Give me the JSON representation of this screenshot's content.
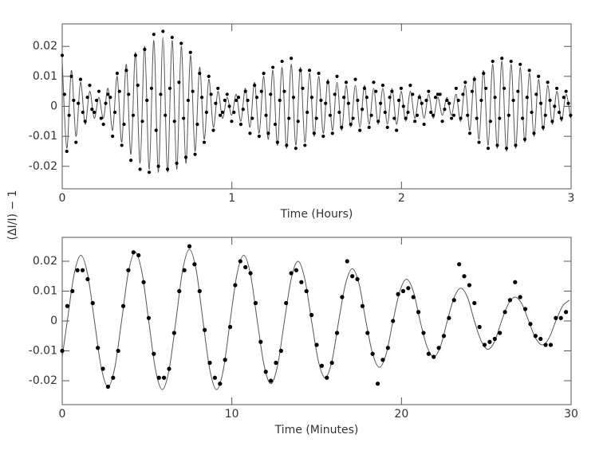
{
  "chart_data": [
    {
      "type": "line",
      "ylabel": "(ΔI/I) − 1",
      "xlabel": "Time (Hours)",
      "xlim": [
        0,
        3
      ],
      "xticks": [
        0,
        1,
        2,
        3
      ],
      "ylim": [
        -0.0275,
        0.0275
      ],
      "yticks": [
        -0.02,
        -0.01,
        0,
        0.01,
        0.02
      ],
      "x": [
        0,
        0.027,
        0.054,
        0.081,
        0.108,
        0.135,
        0.162,
        0.189,
        0.216,
        0.243,
        0.27,
        0.297,
        0.324,
        0.351,
        0.378,
        0.405,
        0.432,
        0.459,
        0.486,
        0.513,
        0.54,
        0.567,
        0.594,
        0.621,
        0.648,
        0.675,
        0.702,
        0.729,
        0.756,
        0.783,
        0.81,
        0.837,
        0.864,
        0.891,
        0.918,
        0.945,
        0.972,
        0.999,
        1.026,
        1.053,
        1.08,
        1.107,
        1.134,
        1.161,
        1.188,
        1.215,
        1.242,
        1.269,
        1.296,
        1.323,
        1.35,
        1.377,
        1.404,
        1.431,
        1.458,
        1.485,
        1.512,
        1.539,
        1.566,
        1.593,
        1.62,
        1.647,
        1.674,
        1.701,
        1.728,
        1.755,
        1.782,
        1.809,
        1.836,
        1.863,
        1.89,
        1.917,
        1.944,
        1.971,
        1.998,
        2.025,
        2.052,
        2.079,
        2.106,
        2.133,
        2.16,
        2.187,
        2.214,
        2.241,
        2.268,
        2.295,
        2.322,
        2.349,
        2.376,
        2.403,
        2.43,
        2.457,
        2.484,
        2.511,
        2.538,
        2.565,
        2.592,
        2.619,
        2.646,
        2.673,
        2.7,
        2.727,
        2.754,
        2.781,
        2.808,
        2.835,
        2.862,
        2.889,
        2.916,
        2.943,
        2.97,
        2.997
      ],
      "series": [
        {
          "type": "line",
          "color": "#555555",
          "values": [
            0.015,
            -0.014,
            0.012,
            -0.01,
            0.008,
            -0.006,
            0.005,
            -0.004,
            0.003,
            -0.004,
            0.006,
            -0.008,
            0.01,
            -0.012,
            0.014,
            -0.016,
            0.018,
            -0.019,
            0.02,
            -0.021,
            0.022,
            -0.022,
            0.023,
            -0.022,
            0.022,
            -0.021,
            0.02,
            -0.019,
            0.017,
            -0.015,
            0.013,
            -0.011,
            0.009,
            -0.007,
            0.005,
            -0.004,
            0.003,
            -0.003,
            0.004,
            -0.005,
            0.006,
            -0.007,
            0.008,
            -0.009,
            0.01,
            -0.011,
            0.012,
            -0.013,
            0.013,
            -0.014,
            0.014,
            -0.013,
            0.013,
            -0.012,
            0.011,
            -0.01,
            0.01,
            -0.009,
            0.009,
            -0.008,
            0.008,
            -0.008,
            0.007,
            -0.007,
            0.007,
            -0.007,
            0.007,
            -0.006,
            0.006,
            -0.006,
            0.006,
            -0.006,
            0.006,
            -0.006,
            0.005,
            -0.005,
            0.005,
            -0.004,
            0.004,
            -0.004,
            0.004,
            -0.004,
            0.003,
            -0.003,
            0.003,
            -0.003,
            0.004,
            -0.005,
            0.007,
            -0.008,
            0.01,
            -0.011,
            0.012,
            -0.013,
            0.014,
            -0.014,
            0.015,
            -0.015,
            0.014,
            -0.014,
            0.013,
            -0.012,
            0.011,
            -0.01,
            0.009,
            -0.008,
            0.007,
            -0.006,
            0.005,
            -0.005,
            0.004,
            -0.004
          ]
        },
        {
          "type": "scatter",
          "color": "#000000",
          "values": [
            0.017,
            -0.015,
            0.01,
            -0.012,
            0.009,
            -0.005,
            0.007,
            -0.002,
            0.005,
            -0.006,
            0.004,
            -0.01,
            0.011,
            -0.013,
            0.012,
            -0.018,
            0.017,
            -0.021,
            0.019,
            -0.022,
            0.024,
            -0.02,
            0.025,
            -0.021,
            0.023,
            -0.019,
            0.021,
            -0.017,
            0.018,
            -0.016,
            0.011,
            -0.012,
            0.01,
            -0.008,
            0.006,
            -0.002,
            0.004,
            -0.005,
            0.002,
            -0.006,
            0.005,
            -0.009,
            0.007,
            -0.01,
            0.011,
            -0.009,
            0.013,
            -0.012,
            0.015,
            -0.013,
            0.016,
            -0.014,
            0.012,
            -0.013,
            0.012,
            -0.009,
            0.011,
            -0.01,
            0.008,
            -0.009,
            0.01,
            -0.007,
            0.008,
            -0.006,
            0.009,
            -0.008,
            0.006,
            -0.007,
            0.008,
            -0.005,
            0.007,
            -0.007,
            0.005,
            -0.008,
            0.006,
            -0.004,
            0.007,
            -0.005,
            0.003,
            -0.006,
            0.005,
            -0.003,
            0.004,
            -0.005,
            0.002,
            -0.004,
            0.006,
            -0.004,
            0.008,
            -0.009,
            0.009,
            -0.012,
            0.011,
            -0.014,
            0.015,
            -0.013,
            0.016,
            -0.014,
            0.015,
            -0.013,
            0.014,
            -0.011,
            0.012,
            -0.009,
            0.01,
            -0.007,
            0.008,
            -0.005,
            0.006,
            -0.004,
            0.005,
            -0.003
          ]
        },
        {
          "type": "scatter",
          "color": "#000000",
          "x": [
            0.0135,
            0.0405,
            0.0675,
            0.0945,
            0.1215,
            0.1485,
            0.1755,
            0.2025,
            0.2295,
            0.2565,
            0.2835,
            0.3105,
            0.3375,
            0.3645,
            0.3915,
            0.4185,
            0.4455,
            0.4725,
            0.4995,
            0.5265,
            0.5535,
            0.5805,
            0.6075,
            0.6345,
            0.6615,
            0.6885,
            0.7155,
            0.7425,
            0.7695,
            0.7965,
            0.8235,
            0.8505,
            0.8775,
            0.9045,
            0.9315,
            0.9585,
            0.9855,
            1.0125,
            1.0395,
            1.0665,
            1.0935,
            1.1205,
            1.1475,
            1.1745,
            1.2015,
            1.2285,
            1.2555,
            1.2825,
            1.3095,
            1.3365,
            1.3635,
            1.3905,
            1.4175,
            1.4445,
            1.4715,
            1.4985,
            1.5255,
            1.5525,
            1.5795,
            1.6065,
            1.6335,
            1.6605,
            1.6875,
            1.7145,
            1.7415,
            1.7685,
            1.7955,
            1.8225,
            1.8495,
            1.8765,
            1.9035,
            1.9305,
            1.9575,
            1.9845,
            2.0115,
            2.0385,
            2.0655,
            2.0925,
            2.1195,
            2.1465,
            2.1735,
            2.2005,
            2.2275,
            2.2545,
            2.2815,
            2.3085,
            2.3355,
            2.3625,
            2.3895,
            2.4165,
            2.4435,
            2.4705,
            2.4975,
            2.5245,
            2.5515,
            2.5785,
            2.6055,
            2.6325,
            2.6595,
            2.6865,
            2.7135,
            2.7405,
            2.7675,
            2.7945,
            2.8215,
            2.8485,
            2.8755,
            2.9025,
            2.9295,
            2.9565,
            2.9835
          ],
          "values": [
            0.004,
            -0.003,
            0.002,
            0.001,
            -0.002,
            0.003,
            -0.001,
            0.002,
            -0.004,
            0.001,
            0.003,
            -0.002,
            0.005,
            -0.006,
            0.004,
            -0.003,
            0.007,
            -0.005,
            0.002,
            0.006,
            -0.008,
            0.004,
            -0.003,
            0.006,
            -0.005,
            0.008,
            -0.004,
            0.002,
            0.005,
            -0.006,
            0.003,
            -0.002,
            0.004,
            0.001,
            -0.003,
            0.002,
            0,
            -0.002,
            0.003,
            -0.001,
            0.002,
            -0.004,
            0.003,
            0.005,
            -0.003,
            0.004,
            -0.006,
            0.002,
            0.005,
            -0.004,
            0.003,
            -0.005,
            0.006,
            -0.002,
            0.003,
            -0.004,
            0.002,
            0.001,
            -0.003,
            0.004,
            -0.002,
            0.003,
            0.001,
            -0.004,
            0.002,
            -0.001,
            0.003,
            -0.003,
            0.005,
            0.001,
            -0.002,
            0.003,
            -0.004,
            0.002,
            0,
            -0.002,
            0.004,
            -0.003,
            0.001,
            0.002,
            -0.002,
            0.003,
            0.004,
            -0.001,
            0.001,
            -0.003,
            0.002,
            0.004,
            -0.003,
            0.005,
            -0.004,
            0.002,
            0.006,
            -0.005,
            0.003,
            -0.004,
            0.006,
            -0.003,
            0.002,
            0.005,
            -0.004,
            0.003,
            -0.002,
            0.004,
            0.001,
            -0.003,
            0.002,
            0,
            -0.002,
            0.003,
            0.001
          ]
        }
      ]
    },
    {
      "type": "line",
      "xlabel": "Time (Minutes)",
      "xlim": [
        0,
        30
      ],
      "xticks": [
        0,
        10,
        20,
        30
      ],
      "ylim": [
        -0.028,
        0.028
      ],
      "yticks": [
        -0.02,
        -0.01,
        0,
        0.01,
        0.02
      ],
      "x": [
        0,
        0.3,
        0.7,
        1.1,
        1.5,
        1.9,
        2.3,
        2.7,
        3.1,
        3.5,
        3.9,
        4.3,
        4.7,
        5.1,
        5.5,
        5.9,
        6.3,
        6.7,
        7.1,
        7.5,
        7.9,
        8.3,
        8.7,
        9.1,
        9.5,
        9.9,
        10.3,
        10.7,
        11.1,
        11.5,
        11.9,
        12.3,
        12.7,
        13.1,
        13.5,
        13.9,
        14.3,
        14.7,
        15.1,
        15.5,
        15.9,
        16.3,
        16.7,
        17.1,
        17.5,
        17.9,
        18.3,
        18.7,
        19.1,
        19.5,
        19.9,
        20.3,
        20.7,
        21.1,
        21.5,
        21.9,
        22.3,
        22.7,
        23.1,
        23.5,
        23.9,
        24.3,
        24.7,
        25.1,
        25.5,
        25.9,
        26.3,
        26.7,
        27.1,
        27.5,
        27.9,
        28.3,
        28.7,
        29.1,
        29.5,
        29.9
      ],
      "series": [
        {
          "type": "line",
          "color": "#555555",
          "values": [
            -0.012,
            0,
            0.0156,
            0.022,
            0.0156,
            0,
            -0.0156,
            -0.022,
            -0.0156,
            0,
            0.0163,
            0.023,
            0.0163,
            0,
            -0.0163,
            -0.023,
            -0.0163,
            0,
            0.017,
            0.024,
            0.017,
            0,
            -0.0163,
            -0.023,
            -0.0163,
            0,
            0.0156,
            0.022,
            0.0156,
            0,
            -0.0148,
            -0.021,
            -0.0148,
            0,
            0.0141,
            0.02,
            0.0141,
            0,
            -0.0134,
            -0.019,
            -0.0134,
            0,
            0.0124,
            0.0175,
            0.0124,
            0,
            -0.011,
            -0.0155,
            -0.011,
            0,
            0.0099,
            0.014,
            0.0099,
            0,
            -0.0085,
            -0.012,
            -0.0085,
            0,
            0.0078,
            0.011,
            0.0078,
            0,
            -0.0067,
            -0.0095,
            -0.0067,
            0,
            0.0057,
            0.008,
            0.0057,
            0,
            -0.0057,
            -0.008,
            -0.0057,
            0,
            0.005,
            0.007
          ]
        },
        {
          "type": "scatter",
          "color": "#000000",
          "x": [
            0,
            0.3,
            0.6,
            0.9,
            1.2,
            1.5,
            1.8,
            2.1,
            2.4,
            2.7,
            3,
            3.3,
            3.6,
            3.9,
            4.2,
            4.5,
            4.8,
            5.1,
            5.4,
            5.7,
            6,
            6.3,
            6.6,
            6.9,
            7.2,
            7.5,
            7.8,
            8.1,
            8.4,
            8.7,
            9,
            9.3,
            9.6,
            9.9,
            10.2,
            10.5,
            10.8,
            11.1,
            11.4,
            11.7,
            12,
            12.3,
            12.6,
            12.9,
            13.2,
            13.5,
            13.8,
            14.1,
            14.4,
            14.7,
            15,
            15.3,
            15.6,
            15.9,
            16.2,
            16.5,
            16.8,
            17.1,
            17.4,
            17.7,
            18,
            18.3,
            18.6,
            18.9,
            19.2,
            19.5,
            19.8,
            20.1,
            20.4,
            20.7,
            21,
            21.3,
            21.6,
            21.9,
            22.2,
            22.5,
            22.8,
            23.1,
            23.4,
            23.7,
            24,
            24.3,
            24.6,
            24.9,
            25.2,
            25.5,
            25.8,
            26.1,
            26.4,
            26.7,
            27,
            27.3,
            27.6,
            27.9,
            28.2,
            28.5,
            28.8,
            29.1,
            29.4,
            29.7
          ],
          "values": [
            -0.01,
            0.005,
            0.01,
            0.017,
            0.017,
            0.014,
            0.006,
            -0.009,
            -0.016,
            -0.022,
            -0.019,
            -0.01,
            0.005,
            0.017,
            0.023,
            0.022,
            0.013,
            0.001,
            -0.011,
            -0.019,
            -0.019,
            -0.016,
            -0.004,
            0.01,
            0.017,
            0.025,
            0.019,
            0.01,
            -0.003,
            -0.014,
            -0.019,
            -0.021,
            -0.013,
            -0.002,
            0.012,
            0.02,
            0.018,
            0.016,
            0.006,
            -0.007,
            -0.017,
            -0.02,
            -0.014,
            -0.01,
            0.006,
            0.016,
            0.017,
            0.013,
            0.01,
            0.002,
            -0.008,
            -0.015,
            -0.019,
            -0.014,
            -0.004,
            0.008,
            0.02,
            0.015,
            0.014,
            0.005,
            -0.004,
            -0.011,
            -0.021,
            -0.013,
            -0.009,
            0,
            0.009,
            0.01,
            0.011,
            0.008,
            0.003,
            -0.004,
            -0.011,
            -0.012,
            -0.009,
            -0.005,
            0.001,
            0.007,
            0.019,
            0.015,
            0.012,
            0.006,
            -0.002,
            -0.008,
            -0.007,
            -0.006,
            -0.004,
            0.003,
            0.007,
            0.013,
            0.008,
            0.004,
            -0.001,
            -0.005,
            -0.006,
            -0.008,
            -0.008,
            0.001,
            0.001,
            0.003
          ]
        }
      ]
    }
  ]
}
